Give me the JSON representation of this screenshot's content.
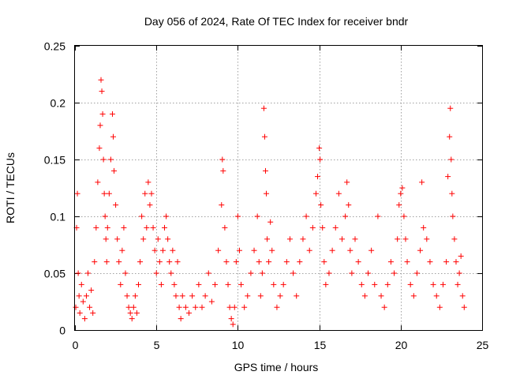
{
  "chart_data": {
    "type": "scatter",
    "title": "Day 056 of 2024, Rate Of TEC Index for receiver bndr",
    "xlabel": "GPS time / hours",
    "ylabel": "ROTI / TECUs",
    "xlim": [
      0,
      25
    ],
    "ylim": [
      0,
      0.25
    ],
    "x_ticks": [
      0,
      5,
      10,
      15,
      20,
      25
    ],
    "x_tick_labels": [
      "0",
      "5",
      "10",
      "15",
      "20",
      "25"
    ],
    "y_ticks": [
      0,
      0.05,
      0.1,
      0.15,
      0.2,
      0.25
    ],
    "y_tick_labels": [
      "0",
      "0.05",
      "0.1",
      "0.15",
      "0.2",
      "0.25"
    ],
    "grid": true,
    "marker": "plus",
    "color": "#ff0000",
    "series": [
      {
        "points": [
          [
            0.05,
            0.02
          ],
          [
            0.1,
            0.09
          ],
          [
            0.15,
            0.12
          ],
          [
            0.2,
            0.05
          ],
          [
            0.25,
            0.03
          ],
          [
            0.3,
            0.015
          ],
          [
            0.4,
            0.04
          ],
          [
            0.5,
            0.025
          ],
          [
            0.6,
            0.01
          ],
          [
            0.7,
            0.03
          ],
          [
            0.8,
            0.05
          ],
          [
            0.9,
            0.02
          ],
          [
            1.0,
            0.035
          ],
          [
            1.1,
            0.015
          ],
          [
            1.2,
            0.06
          ],
          [
            1.3,
            0.09
          ],
          [
            1.4,
            0.13
          ],
          [
            1.5,
            0.16
          ],
          [
            1.55,
            0.18
          ],
          [
            1.6,
            0.22
          ],
          [
            1.65,
            0.21
          ],
          [
            1.7,
            0.19
          ],
          [
            1.75,
            0.15
          ],
          [
            1.8,
            0.12
          ],
          [
            1.85,
            0.1
          ],
          [
            1.9,
            0.08
          ],
          [
            1.95,
            0.06
          ],
          [
            2.0,
            0.09
          ],
          [
            2.1,
            0.12
          ],
          [
            2.2,
            0.15
          ],
          [
            2.3,
            0.19
          ],
          [
            2.35,
            0.17
          ],
          [
            2.4,
            0.14
          ],
          [
            2.5,
            0.11
          ],
          [
            2.6,
            0.08
          ],
          [
            2.7,
            0.06
          ],
          [
            2.8,
            0.04
          ],
          [
            2.9,
            0.07
          ],
          [
            3.0,
            0.09
          ],
          [
            3.1,
            0.05
          ],
          [
            3.2,
            0.03
          ],
          [
            3.3,
            0.02
          ],
          [
            3.4,
            0.015
          ],
          [
            3.5,
            0.01
          ],
          [
            3.6,
            0.02
          ],
          [
            3.7,
            0.03
          ],
          [
            3.8,
            0.015
          ],
          [
            3.9,
            0.04
          ],
          [
            4.0,
            0.06
          ],
          [
            4.1,
            0.1
          ],
          [
            4.2,
            0.08
          ],
          [
            4.3,
            0.12
          ],
          [
            4.4,
            0.09
          ],
          [
            4.5,
            0.13
          ],
          [
            4.6,
            0.11
          ],
          [
            4.7,
            0.12
          ],
          [
            4.8,
            0.09
          ],
          [
            4.9,
            0.07
          ],
          [
            5.0,
            0.05
          ],
          [
            5.1,
            0.08
          ],
          [
            5.2,
            0.06
          ],
          [
            5.3,
            0.04
          ],
          [
            5.4,
            0.07
          ],
          [
            5.5,
            0.09
          ],
          [
            5.6,
            0.1
          ],
          [
            5.7,
            0.08
          ],
          [
            5.8,
            0.06
          ],
          [
            5.9,
            0.05
          ],
          [
            6.0,
            0.07
          ],
          [
            6.1,
            0.04
          ],
          [
            6.2,
            0.03
          ],
          [
            6.3,
            0.06
          ],
          [
            6.4,
            0.02
          ],
          [
            6.5,
            0.01
          ],
          [
            6.6,
            0.03
          ],
          [
            6.8,
            0.02
          ],
          [
            7.0,
            0.015
          ],
          [
            7.2,
            0.03
          ],
          [
            7.4,
            0.02
          ],
          [
            7.6,
            0.04
          ],
          [
            7.8,
            0.02
          ],
          [
            8.0,
            0.03
          ],
          [
            8.2,
            0.05
          ],
          [
            8.4,
            0.025
          ],
          [
            8.6,
            0.04
          ],
          [
            8.8,
            0.07
          ],
          [
            9.0,
            0.11
          ],
          [
            9.05,
            0.15
          ],
          [
            9.1,
            0.14
          ],
          [
            9.2,
            0.09
          ],
          [
            9.3,
            0.06
          ],
          [
            9.4,
            0.04
          ],
          [
            9.5,
            0.02
          ],
          [
            9.6,
            0.01
          ],
          [
            9.7,
            0.005
          ],
          [
            9.8,
            0.02
          ],
          [
            9.9,
            0.06
          ],
          [
            10.0,
            0.1
          ],
          [
            10.1,
            0.07
          ],
          [
            10.2,
            0.04
          ],
          [
            10.4,
            0.02
          ],
          [
            10.6,
            0.03
          ],
          [
            10.8,
            0.05
          ],
          [
            11.0,
            0.07
          ],
          [
            11.2,
            0.1
          ],
          [
            11.3,
            0.06
          ],
          [
            11.4,
            0.03
          ],
          [
            11.5,
            0.05
          ],
          [
            11.6,
            0.195
          ],
          [
            11.65,
            0.17
          ],
          [
            11.7,
            0.14
          ],
          [
            11.75,
            0.12
          ],
          [
            11.8,
            0.08
          ],
          [
            11.9,
            0.06
          ],
          [
            12.0,
            0.095
          ],
          [
            12.1,
            0.07
          ],
          [
            12.2,
            0.04
          ],
          [
            12.4,
            0.02
          ],
          [
            12.6,
            0.03
          ],
          [
            12.8,
            0.04
          ],
          [
            13.0,
            0.06
          ],
          [
            13.2,
            0.08
          ],
          [
            13.4,
            0.05
          ],
          [
            13.6,
            0.03
          ],
          [
            13.8,
            0.06
          ],
          [
            14.0,
            0.08
          ],
          [
            14.2,
            0.1
          ],
          [
            14.4,
            0.07
          ],
          [
            14.6,
            0.09
          ],
          [
            14.8,
            0.12
          ],
          [
            14.9,
            0.135
          ],
          [
            15.0,
            0.16
          ],
          [
            15.05,
            0.15
          ],
          [
            15.1,
            0.11
          ],
          [
            15.2,
            0.09
          ],
          [
            15.3,
            0.06
          ],
          [
            15.4,
            0.04
          ],
          [
            15.6,
            0.05
          ],
          [
            15.8,
            0.07
          ],
          [
            16.0,
            0.09
          ],
          [
            16.2,
            0.12
          ],
          [
            16.4,
            0.08
          ],
          [
            16.6,
            0.1
          ],
          [
            16.7,
            0.13
          ],
          [
            16.8,
            0.11
          ],
          [
            16.9,
            0.07
          ],
          [
            17.0,
            0.05
          ],
          [
            17.2,
            0.08
          ],
          [
            17.4,
            0.06
          ],
          [
            17.6,
            0.04
          ],
          [
            17.8,
            0.03
          ],
          [
            18.0,
            0.05
          ],
          [
            18.2,
            0.07
          ],
          [
            18.4,
            0.04
          ],
          [
            18.6,
            0.1
          ],
          [
            18.8,
            0.03
          ],
          [
            19.0,
            0.02
          ],
          [
            19.2,
            0.04
          ],
          [
            19.4,
            0.06
          ],
          [
            19.6,
            0.05
          ],
          [
            19.8,
            0.08
          ],
          [
            19.9,
            0.11
          ],
          [
            20.0,
            0.12
          ],
          [
            20.1,
            0.125
          ],
          [
            20.2,
            0.1
          ],
          [
            20.3,
            0.08
          ],
          [
            20.4,
            0.06
          ],
          [
            20.6,
            0.04
          ],
          [
            20.8,
            0.03
          ],
          [
            21.0,
            0.05
          ],
          [
            21.2,
            0.07
          ],
          [
            21.3,
            0.13
          ],
          [
            21.4,
            0.09
          ],
          [
            21.6,
            0.08
          ],
          [
            21.8,
            0.06
          ],
          [
            22.0,
            0.04
          ],
          [
            22.2,
            0.03
          ],
          [
            22.4,
            0.02
          ],
          [
            22.6,
            0.04
          ],
          [
            22.8,
            0.06
          ],
          [
            22.9,
            0.135
          ],
          [
            23.0,
            0.17
          ],
          [
            23.05,
            0.195
          ],
          [
            23.1,
            0.15
          ],
          [
            23.15,
            0.12
          ],
          [
            23.2,
            0.1
          ],
          [
            23.3,
            0.08
          ],
          [
            23.4,
            0.06
          ],
          [
            23.5,
            0.04
          ],
          [
            23.6,
            0.05
          ],
          [
            23.7,
            0.065
          ],
          [
            23.8,
            0.03
          ],
          [
            23.9,
            0.02
          ]
        ]
      }
    ]
  }
}
